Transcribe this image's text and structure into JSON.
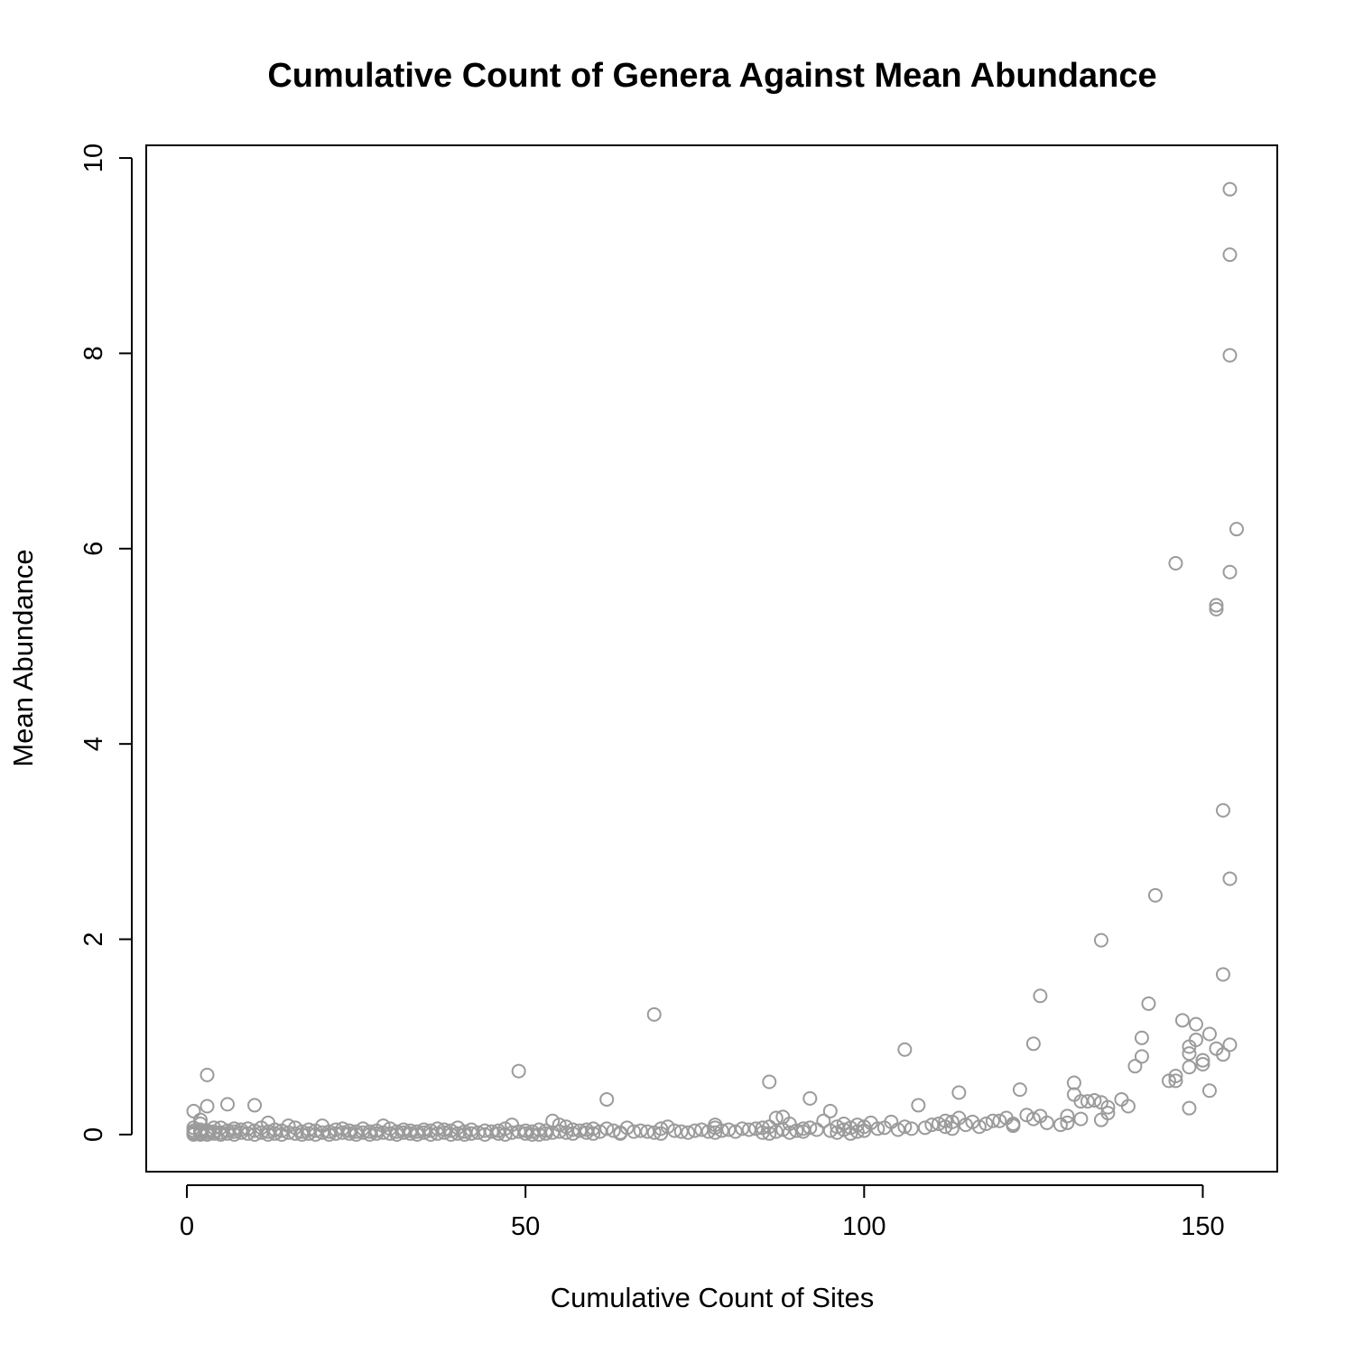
{
  "chart_data": {
    "type": "scatter",
    "title": "Cumulative Count of Genera Against Mean Abundance",
    "xlabel": "Cumulative Count of Sites",
    "ylabel": "Mean Abundance",
    "xlim": [
      -6,
      161
    ],
    "ylim": [
      -0.38,
      10.13
    ],
    "xticks": [
      0,
      50,
      100,
      150
    ],
    "yticks": [
      0,
      2,
      4,
      6,
      8,
      10
    ],
    "grid": false,
    "legend": "none",
    "point_color": "#9b9b9b",
    "points": [
      [
        154,
        9.68
      ],
      [
        154,
        9.01
      ],
      [
        154,
        7.98
      ],
      [
        155,
        6.2
      ],
      [
        146,
        5.85
      ],
      [
        154,
        5.76
      ],
      [
        152,
        5.42
      ],
      [
        152,
        5.38
      ],
      [
        153,
        3.32
      ],
      [
        154,
        2.62
      ],
      [
        143,
        2.45
      ],
      [
        135,
        1.99
      ],
      [
        153,
        1.64
      ],
      [
        126,
        1.42
      ],
      [
        142,
        1.34
      ],
      [
        69,
        1.23
      ],
      [
        147,
        1.17
      ],
      [
        149,
        1.13
      ],
      [
        151,
        1.03
      ],
      [
        141,
        0.99
      ],
      [
        149,
        0.97
      ],
      [
        154,
        0.92
      ],
      [
        125,
        0.93
      ],
      [
        148,
        0.9
      ],
      [
        152,
        0.88
      ],
      [
        106,
        0.87
      ],
      [
        148,
        0.83
      ],
      [
        153,
        0.82
      ],
      [
        141,
        0.8
      ],
      [
        150,
        0.76
      ],
      [
        150,
        0.72
      ],
      [
        140,
        0.7
      ],
      [
        148,
        0.69
      ],
      [
        49,
        0.65
      ],
      [
        3,
        0.61
      ],
      [
        146,
        0.6
      ],
      [
        145,
        0.55
      ],
      [
        146,
        0.55
      ],
      [
        86,
        0.54
      ],
      [
        131,
        0.53
      ],
      [
        123,
        0.46
      ],
      [
        151,
        0.45
      ],
      [
        114,
        0.43
      ],
      [
        131,
        0.41
      ],
      [
        92,
        0.37
      ],
      [
        62,
        0.36
      ],
      [
        138,
        0.36
      ],
      [
        134,
        0.35
      ],
      [
        133,
        0.34
      ],
      [
        132,
        0.34
      ],
      [
        135,
        0.33
      ],
      [
        6,
        0.31
      ],
      [
        10,
        0.3
      ],
      [
        108,
        0.3
      ],
      [
        3,
        0.29
      ],
      [
        139,
        0.29
      ],
      [
        136,
        0.28
      ],
      [
        148,
        0.27
      ],
      [
        1,
        0.24
      ],
      [
        95,
        0.24
      ],
      [
        136,
        0.22
      ],
      [
        124,
        0.2
      ],
      [
        126,
        0.19
      ],
      [
        130,
        0.19
      ],
      [
        88,
        0.18
      ],
      [
        87,
        0.17
      ],
      [
        114,
        0.17
      ],
      [
        121,
        0.17
      ],
      [
        125,
        0.16
      ],
      [
        132,
        0.16
      ],
      [
        2,
        0.15
      ],
      [
        135,
        0.15
      ],
      [
        54,
        0.14
      ],
      [
        94,
        0.14
      ],
      [
        112,
        0.14
      ],
      [
        119,
        0.14
      ],
      [
        120,
        0.14
      ],
      [
        104,
        0.13
      ],
      [
        113,
        0.13
      ],
      [
        116,
        0.13
      ],
      [
        127,
        0.12
      ],
      [
        130,
        0.12
      ],
      [
        101,
        0.12
      ],
      [
        12,
        0.12
      ],
      [
        2,
        0.11
      ],
      [
        89,
        0.11
      ],
      [
        97,
        0.11
      ],
      [
        111,
        0.11
      ],
      [
        118,
        0.11
      ],
      [
        122,
        0.11
      ],
      [
        55,
        0.1
      ],
      [
        48,
        0.1
      ],
      [
        78,
        0.1
      ],
      [
        99,
        0.1
      ],
      [
        110,
        0.1
      ],
      [
        115,
        0.1
      ],
      [
        129,
        0.1
      ],
      [
        122,
        0.09
      ],
      [
        29,
        0.09
      ],
      [
        15,
        0.09
      ],
      [
        20,
        0.09
      ],
      [
        56,
        0.08
      ],
      [
        71,
        0.08
      ],
      [
        86,
        0.08
      ],
      [
        96,
        0.08
      ],
      [
        100,
        0.08
      ],
      [
        106,
        0.08
      ],
      [
        112,
        0.08
      ],
      [
        117,
        0.08
      ],
      [
        1,
        0.07
      ],
      [
        4,
        0.07
      ],
      [
        5,
        0.07
      ],
      [
        11,
        0.07
      ],
      [
        16,
        0.07
      ],
      [
        40,
        0.07
      ],
      [
        65,
        0.07
      ],
      [
        78,
        0.07
      ],
      [
        85,
        0.07
      ],
      [
        92,
        0.07
      ],
      [
        98,
        0.07
      ],
      [
        103,
        0.07
      ],
      [
        109,
        0.07
      ],
      [
        7,
        0.06
      ],
      [
        9,
        0.06
      ],
      [
        23,
        0.06
      ],
      [
        26,
        0.06
      ],
      [
        30,
        0.06
      ],
      [
        37,
        0.06
      ],
      [
        47,
        0.06
      ],
      [
        60,
        0.06
      ],
      [
        62,
        0.06
      ],
      [
        70,
        0.06
      ],
      [
        82,
        0.06
      ],
      [
        84,
        0.06
      ],
      [
        91,
        0.06
      ],
      [
        102,
        0.06
      ],
      [
        107,
        0.06
      ],
      [
        113,
        0.06
      ],
      [
        2,
        0.05
      ],
      [
        8,
        0.05
      ],
      [
        13,
        0.05
      ],
      [
        18,
        0.05
      ],
      [
        22,
        0.05
      ],
      [
        32,
        0.05
      ],
      [
        35,
        0.05
      ],
      [
        38,
        0.05
      ],
      [
        42,
        0.05
      ],
      [
        52,
        0.05
      ],
      [
        57,
        0.05
      ],
      [
        59,
        0.05
      ],
      [
        76,
        0.05
      ],
      [
        80,
        0.05
      ],
      [
        83,
        0.05
      ],
      [
        88,
        0.05
      ],
      [
        93,
        0.05
      ],
      [
        97,
        0.05
      ],
      [
        105,
        0.05
      ],
      [
        1,
        0.04
      ],
      [
        3,
        0.04
      ],
      [
        6,
        0.04
      ],
      [
        10,
        0.04
      ],
      [
        14,
        0.04
      ],
      [
        19,
        0.04
      ],
      [
        24,
        0.04
      ],
      [
        28,
        0.04
      ],
      [
        33,
        0.04
      ],
      [
        36,
        0.04
      ],
      [
        39,
        0.04
      ],
      [
        44,
        0.04
      ],
      [
        46,
        0.04
      ],
      [
        50,
        0.04
      ],
      [
        53,
        0.04
      ],
      [
        58,
        0.04
      ],
      [
        63,
        0.04
      ],
      [
        67,
        0.04
      ],
      [
        72,
        0.04
      ],
      [
        75,
        0.04
      ],
      [
        79,
        0.04
      ],
      [
        90,
        0.04
      ],
      [
        95,
        0.04
      ],
      [
        100,
        0.04
      ],
      [
        2,
        0.03
      ],
      [
        4,
        0.03
      ],
      [
        7,
        0.03
      ],
      [
        12,
        0.03
      ],
      [
        17,
        0.03
      ],
      [
        21,
        0.03
      ],
      [
        25,
        0.03
      ],
      [
        27,
        0.03
      ],
      [
        31,
        0.03
      ],
      [
        34,
        0.03
      ],
      [
        41,
        0.03
      ],
      [
        45,
        0.03
      ],
      [
        49,
        0.03
      ],
      [
        51,
        0.03
      ],
      [
        55,
        0.03
      ],
      [
        61,
        0.03
      ],
      [
        66,
        0.03
      ],
      [
        68,
        0.03
      ],
      [
        73,
        0.03
      ],
      [
        77,
        0.03
      ],
      [
        81,
        0.03
      ],
      [
        87,
        0.03
      ],
      [
        91,
        0.03
      ],
      [
        99,
        0.03
      ],
      [
        1,
        0.02
      ],
      [
        3,
        0.02
      ],
      [
        5,
        0.02
      ],
      [
        8,
        0.02
      ],
      [
        11,
        0.02
      ],
      [
        15,
        0.02
      ],
      [
        20,
        0.02
      ],
      [
        23,
        0.02
      ],
      [
        26,
        0.02
      ],
      [
        29,
        0.02
      ],
      [
        32,
        0.02
      ],
      [
        35,
        0.02
      ],
      [
        38,
        0.02
      ],
      [
        43,
        0.02
      ],
      [
        48,
        0.02
      ],
      [
        54,
        0.02
      ],
      [
        56,
        0.02
      ],
      [
        59,
        0.02
      ],
      [
        64,
        0.02
      ],
      [
        69,
        0.02
      ],
      [
        74,
        0.02
      ],
      [
        78,
        0.02
      ],
      [
        85,
        0.02
      ],
      [
        89,
        0.02
      ],
      [
        96,
        0.02
      ],
      [
        1,
        0.01
      ],
      [
        2,
        0.01
      ],
      [
        4,
        0.01
      ],
      [
        6,
        0.01
      ],
      [
        9,
        0.01
      ],
      [
        13,
        0.01
      ],
      [
        16,
        0.01
      ],
      [
        18,
        0.01
      ],
      [
        22,
        0.01
      ],
      [
        24,
        0.01
      ],
      [
        28,
        0.01
      ],
      [
        30,
        0.01
      ],
      [
        33,
        0.01
      ],
      [
        37,
        0.01
      ],
      [
        40,
        0.01
      ],
      [
        42,
        0.01
      ],
      [
        46,
        0.01
      ],
      [
        50,
        0.01
      ],
      [
        53,
        0.01
      ],
      [
        57,
        0.01
      ],
      [
        60,
        0.01
      ],
      [
        64,
        0.01
      ],
      [
        70,
        0.01
      ],
      [
        86,
        0.01
      ],
      [
        98,
        0.01
      ],
      [
        1,
        0.0
      ],
      [
        2,
        0.0
      ],
      [
        3,
        0.0
      ],
      [
        5,
        0.0
      ],
      [
        7,
        0.0
      ],
      [
        10,
        0.0
      ],
      [
        12,
        0.0
      ],
      [
        14,
        0.0
      ],
      [
        17,
        0.0
      ],
      [
        19,
        0.0
      ],
      [
        21,
        0.0
      ],
      [
        25,
        0.0
      ],
      [
        27,
        0.0
      ],
      [
        31,
        0.0
      ],
      [
        34,
        0.0
      ],
      [
        36,
        0.0
      ],
      [
        39,
        0.0
      ],
      [
        41,
        0.0
      ],
      [
        44,
        0.0
      ],
      [
        47,
        0.0
      ],
      [
        51,
        0.0
      ],
      [
        52,
        0.0
      ]
    ]
  }
}
